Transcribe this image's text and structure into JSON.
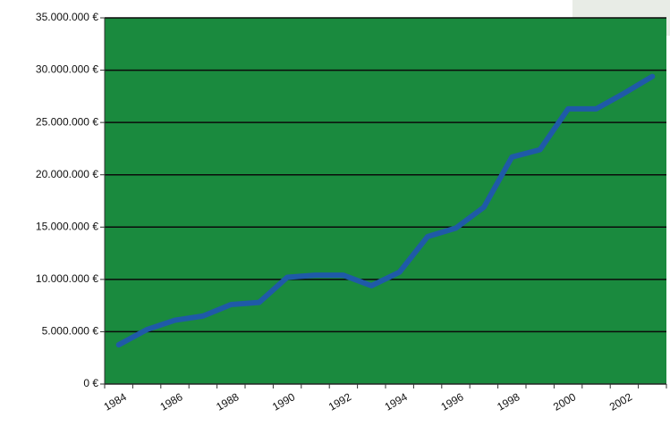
{
  "chart_data": {
    "type": "line",
    "categories": [
      "1984",
      null,
      "1986",
      null,
      "1988",
      null,
      "1990",
      null,
      "1992",
      null,
      "1994",
      null,
      "1996",
      null,
      "1998",
      null,
      "2000",
      null,
      "2002",
      null
    ],
    "series": [
      {
        "color": "#1f5aa8",
        "values": [
          3750000,
          5200000,
          6100000,
          6500000,
          7600000,
          7800000,
          10200000,
          10400000,
          10400000,
          9400000,
          10700000,
          14100000,
          14900000,
          16900000,
          21700000,
          22400000,
          26300000,
          26300000,
          27800000,
          29400000
        ]
      }
    ],
    "ylim": [
      0,
      35000000
    ],
    "yticks": [
      {
        "value": 0,
        "label": "0 €"
      },
      {
        "value": 5000000,
        "label": "5.000.000 €"
      },
      {
        "value": 10000000,
        "label": "10.000.000 €"
      },
      {
        "value": 15000000,
        "label": "15.000.000 €"
      },
      {
        "value": 20000000,
        "label": "20.000.000 €"
      },
      {
        "value": 25000000,
        "label": "25.000.000 €"
      },
      {
        "value": 30000000,
        "label": "30.000.000 €"
      },
      {
        "value": 35000000,
        "label": "35.000.000 €"
      }
    ],
    "grid": true,
    "plot_background": "#1a8a3e"
  }
}
